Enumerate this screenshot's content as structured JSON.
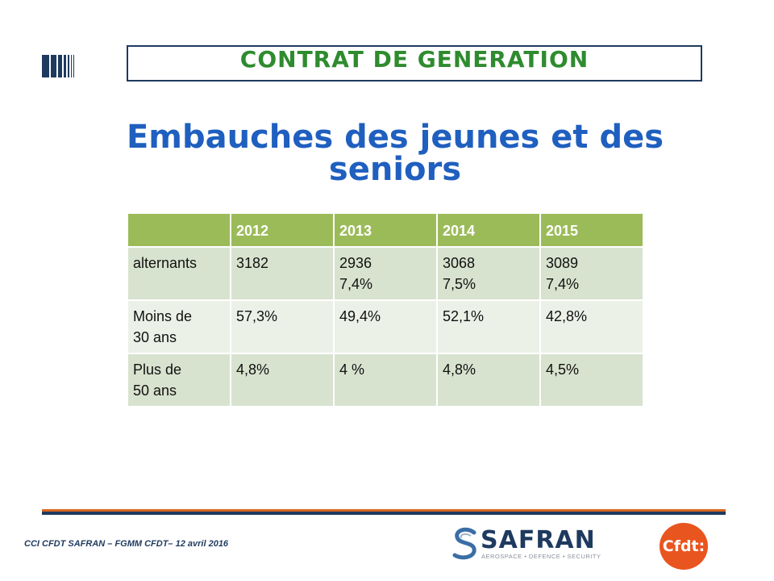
{
  "header": {
    "title": "CONTRAT DE GENERATION"
  },
  "slide": {
    "title_line1": "Embauches des jeunes et des",
    "title_line2": "seniors"
  },
  "table": {
    "headers": [
      "",
      "2012",
      "2013",
      "2014",
      "2015"
    ],
    "rows": [
      {
        "label": "alternants",
        "cells": [
          [
            "3182"
          ],
          [
            "2936",
            "7,4%"
          ],
          [
            "3068",
            "7,5%"
          ],
          [
            "3089",
            "7,4%"
          ]
        ]
      },
      {
        "label_line1": "Moins de",
        "label_line2": "30 ans",
        "cells": [
          "57,3%",
          "49,4%",
          "52,1%",
          "42,8%"
        ]
      },
      {
        "label_line1": "Plus de",
        "label_line2": "50 ans",
        "cells": [
          "4,8%",
          "4 %",
          "4,8%",
          "4,5%"
        ]
      }
    ]
  },
  "footer": {
    "text": "CCI CFDT SAFRAN – FGMM CFDT– 12 avril 2016",
    "safran_name": "SAFRAN",
    "safran_tagline": "AEROSPACE • DEFENCE • SECURITY",
    "cfdt_name": "Cfdt:"
  },
  "colors": {
    "accent_green": "#2e8b2e",
    "title_blue": "#1f5fbf",
    "navy": "#1f3a5f",
    "table_header": "#9bbb59",
    "orange": "#e9551e"
  }
}
